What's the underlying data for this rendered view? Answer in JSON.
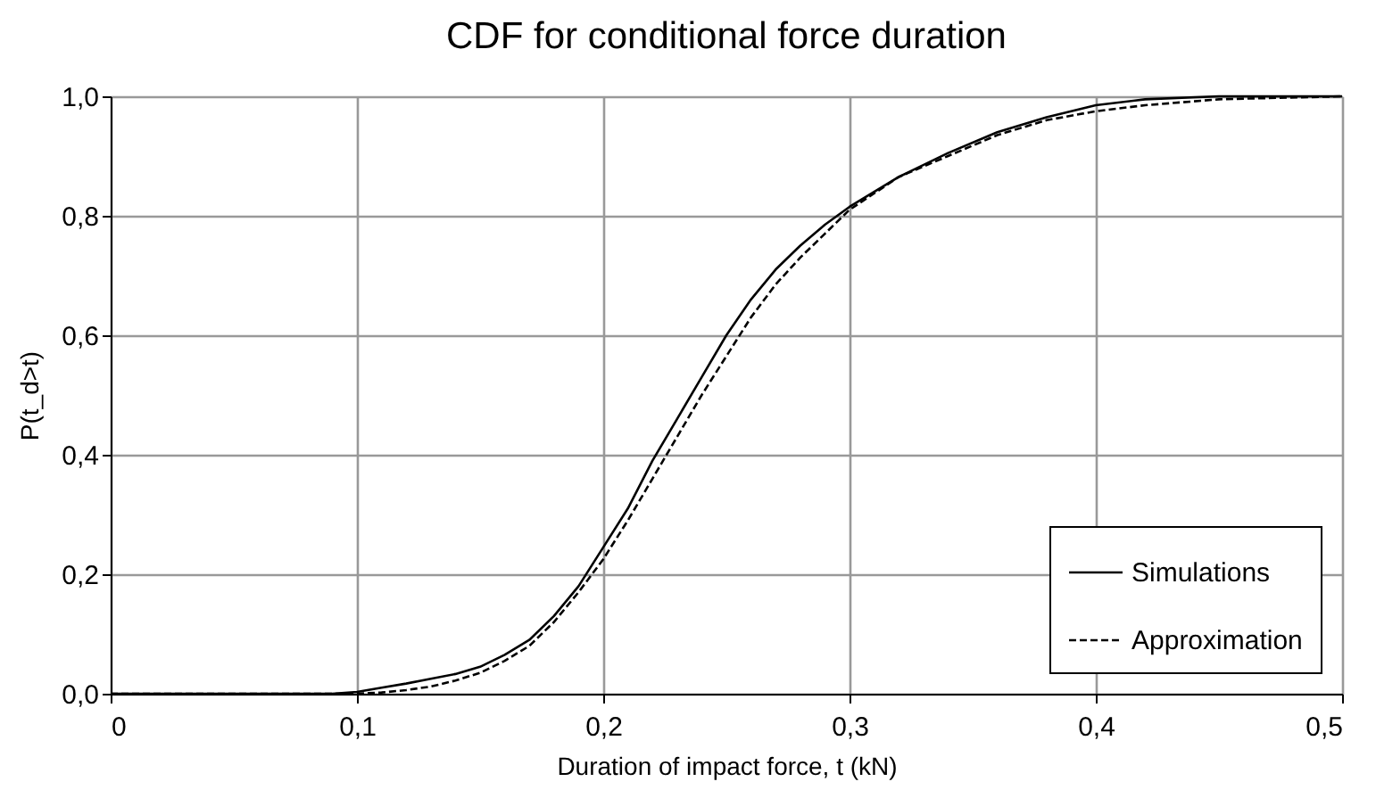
{
  "chart_data": {
    "type": "line",
    "title": "CDF for conditional force duration",
    "xlabel": "Duration of impact force, t (kN)",
    "ylabel": "P(t_d>t)",
    "xlim": [
      0,
      0.5
    ],
    "ylim": [
      0,
      1
    ],
    "xticks": [
      0,
      {
        "value": 0.1,
        "label": "0,1"
      },
      {
        "value": 0.2,
        "label": "0,2"
      },
      {
        "value": 0.3,
        "label": "0,3"
      },
      {
        "value": 0.4,
        "label": "0,4"
      },
      {
        "value": 0.5,
        "label": "0,5"
      }
    ],
    "yticks": [
      {
        "value": 0,
        "label": "0,0"
      },
      {
        "value": 0.2,
        "label": "0,2"
      },
      {
        "value": 0.4,
        "label": "0,4"
      },
      {
        "value": 0.6,
        "label": "0,6"
      },
      {
        "value": 0.8,
        "label": "0,8"
      },
      {
        "value": 1,
        "label": "1,0"
      }
    ],
    "grid": true,
    "legend": "bottom right",
    "marker": "none",
    "series": [
      {
        "name": "Simulations",
        "color": "#000000",
        "line_style": "solid",
        "x": [
          0,
          0.09,
          0.1,
          0.11,
          0.12,
          0.13,
          0.14,
          0.15,
          0.16,
          0.17,
          0.18,
          0.19,
          0.2,
          0.21,
          0.22,
          0.23,
          0.24,
          0.25,
          0.26,
          0.27,
          0.28,
          0.29,
          0.3,
          0.32,
          0.34,
          0.36,
          0.38,
          0.4,
          0.42,
          0.45,
          0.5
        ],
        "values": [
          0,
          0,
          0.003,
          0.01,
          0.017,
          0.025,
          0.033,
          0.045,
          0.065,
          0.09,
          0.13,
          0.18,
          0.245,
          0.31,
          0.39,
          0.46,
          0.53,
          0.6,
          0.66,
          0.71,
          0.75,
          0.785,
          0.815,
          0.865,
          0.905,
          0.94,
          0.965,
          0.985,
          0.995,
          1,
          1
        ]
      },
      {
        "name": "Approximation",
        "color": "#000000",
        "line_style": "dashed",
        "x": [
          0,
          0.1,
          0.11,
          0.12,
          0.13,
          0.14,
          0.15,
          0.16,
          0.17,
          0.18,
          0.19,
          0.2,
          0.21,
          0.22,
          0.23,
          0.24,
          0.25,
          0.26,
          0.27,
          0.28,
          0.29,
          0.3,
          0.32,
          0.34,
          0.36,
          0.38,
          0.4,
          0.42,
          0.45,
          0.5
        ],
        "values": [
          0,
          0,
          0.002,
          0.006,
          0.012,
          0.022,
          0.035,
          0.055,
          0.08,
          0.12,
          0.17,
          0.225,
          0.29,
          0.36,
          0.43,
          0.5,
          0.565,
          0.63,
          0.685,
          0.73,
          0.77,
          0.81,
          0.865,
          0.9,
          0.935,
          0.96,
          0.975,
          0.985,
          0.995,
          1
        ]
      }
    ]
  }
}
